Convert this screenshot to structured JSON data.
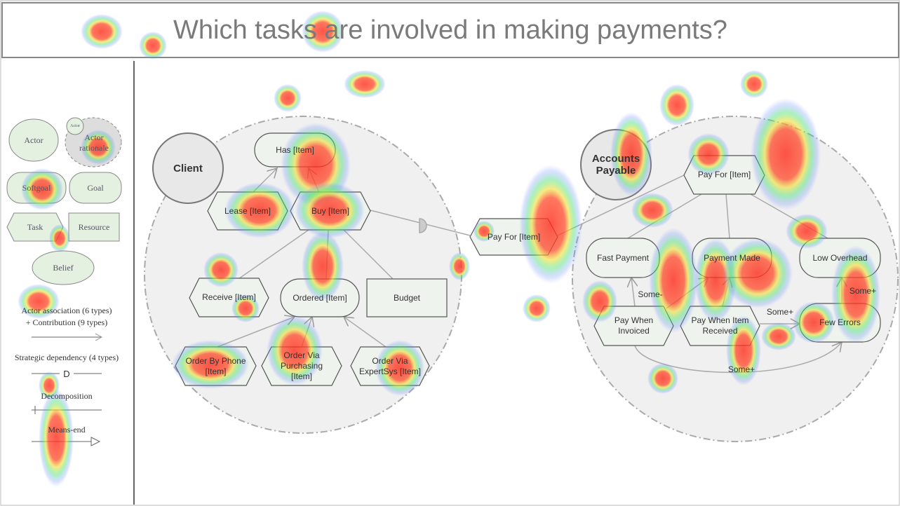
{
  "title": "Which tasks are involved in making payments?",
  "legend": {
    "items": [
      "Actor",
      "Actor",
      "Actor rationale",
      "Softgoal",
      "Goal",
      "Task",
      "Resource",
      "Belief"
    ],
    "links": [
      "Actor association (6 types)",
      "+ Contribution (9 types)",
      "Strategic dependency (4 types)",
      "D",
      "Decomposition",
      "Means-end"
    ]
  },
  "actors": [
    "Client",
    "Accounts Payable"
  ],
  "client_nodes": [
    "Has [Item]",
    "Lease [Item]",
    "Buy [Item]",
    "Receive [Item]",
    "Ordered [Item]",
    "Budget",
    "Order By Phone [Item]",
    "Order Via Purchasing [Item]",
    "Order Via ExpertSys [Item]"
  ],
  "dependum": "Pay For [Item]",
  "payable_nodes": [
    "Pay For [Item]",
    "Fast Payment",
    "Payment Made",
    "Low Overhead",
    "Pay When Invoiced",
    "Pay When Item Received",
    "Few Errors"
  ],
  "contributions": [
    "Some-",
    "Some+",
    "Some+",
    "Some+"
  ]
}
